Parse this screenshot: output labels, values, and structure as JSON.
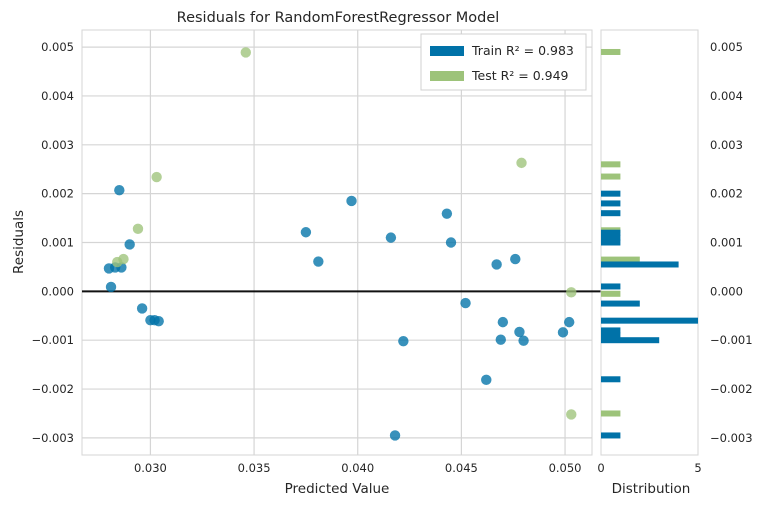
{
  "chart_data": {
    "type": "scatter",
    "title": "Residuals for RandomForestRegressor Model",
    "xlabel": "Predicted Value",
    "ylabel": "Residuals",
    "xlim": [
      0.0267,
      0.0513
    ],
    "ylim": [
      -0.00335,
      0.00535
    ],
    "x_ticks": [
      0.03,
      0.035,
      0.04,
      0.045,
      0.05
    ],
    "x_tick_labels": [
      "0.030",
      "0.035",
      "0.040",
      "0.045",
      "0.050"
    ],
    "y_ticks": [
      -0.003,
      -0.002,
      -0.001,
      0.0,
      0.001,
      0.002,
      0.003,
      0.004,
      0.005
    ],
    "y_tick_labels": [
      "−0.003",
      "−0.002",
      "−0.001",
      "0.000",
      "0.001",
      "0.002",
      "0.003",
      "0.004",
      "0.005"
    ],
    "grid": true,
    "legend_position": "top-right",
    "legend": [
      {
        "label": "Train R² = 0.983",
        "color": "#0072a8"
      },
      {
        "label": "Test R² = 0.949",
        "color": "#9dc37a"
      }
    ],
    "series": [
      {
        "name": "Train",
        "color": "#0072a8",
        "points": [
          [
            0.0285,
            0.00207
          ],
          [
            0.029,
            0.00096
          ],
          [
            0.0286,
            0.00049
          ],
          [
            0.0283,
            0.00049
          ],
          [
            0.028,
            0.00047
          ],
          [
            0.0281,
            9e-05
          ],
          [
            0.0296,
            -0.00035
          ],
          [
            0.03,
            -0.00059
          ],
          [
            0.0302,
            -0.00059
          ],
          [
            0.0304,
            -0.00061
          ],
          [
            0.0375,
            0.00121
          ],
          [
            0.0381,
            0.00061
          ],
          [
            0.0397,
            0.00185
          ],
          [
            0.0416,
            0.0011
          ],
          [
            0.0422,
            -0.00102
          ],
          [
            0.0418,
            -0.00295
          ],
          [
            0.0443,
            0.00159
          ],
          [
            0.0445,
            0.001
          ],
          [
            0.0452,
            -0.00024
          ],
          [
            0.0462,
            -0.00181
          ],
          [
            0.0467,
            0.00055
          ],
          [
            0.047,
            -0.00063
          ],
          [
            0.0469,
            -0.00099
          ],
          [
            0.0476,
            0.00066
          ],
          [
            0.0478,
            -0.00083
          ],
          [
            0.048,
            -0.00101
          ],
          [
            0.0499,
            -0.00084
          ],
          [
            0.0502,
            -0.00063
          ]
        ]
      },
      {
        "name": "Test",
        "color": "#9dc37a",
        "points": [
          [
            0.0346,
            0.00489
          ],
          [
            0.0303,
            0.00234
          ],
          [
            0.0294,
            0.00128
          ],
          [
            0.0287,
            0.00066
          ],
          [
            0.0284,
            0.0006
          ],
          [
            0.0479,
            0.00263
          ],
          [
            0.0503,
            -2e-05
          ],
          [
            0.0503,
            -0.00252
          ]
        ]
      }
    ],
    "distribution": {
      "xlabel": "Distribution",
      "xlim": [
        0,
        5
      ],
      "x_ticks": [
        0,
        5
      ],
      "x_tick_labels": [
        "0",
        "5"
      ],
      "train": [
        {
          "y": 0.002,
          "count": 1
        },
        {
          "y": 0.0018,
          "count": 1
        },
        {
          "y": 0.0016,
          "count": 1
        },
        {
          "y": 0.001,
          "count": 1
        },
        {
          "y": 0.0011,
          "count": 1
        },
        {
          "y": 0.0012,
          "count": 1
        },
        {
          "y": 0.00055,
          "count": 4
        },
        {
          "y": 0.0001,
          "count": 1
        },
        {
          "y": -0.00025,
          "count": 2
        },
        {
          "y": -0.0006,
          "count": 5
        },
        {
          "y": -0.0008,
          "count": 1
        },
        {
          "y": -0.0009,
          "count": 1
        },
        {
          "y": -0.001,
          "count": 3
        },
        {
          "y": -0.0018,
          "count": 1
        },
        {
          "y": -0.00295,
          "count": 1
        }
      ],
      "test": [
        {
          "y": 0.0049,
          "count": 1
        },
        {
          "y": 0.0026,
          "count": 1
        },
        {
          "y": 0.00235,
          "count": 1
        },
        {
          "y": 0.00125,
          "count": 1
        },
        {
          "y": 0.00065,
          "count": 2
        },
        {
          "y": -5e-05,
          "count": 1
        },
        {
          "y": -0.0025,
          "count": 1
        }
      ]
    }
  }
}
